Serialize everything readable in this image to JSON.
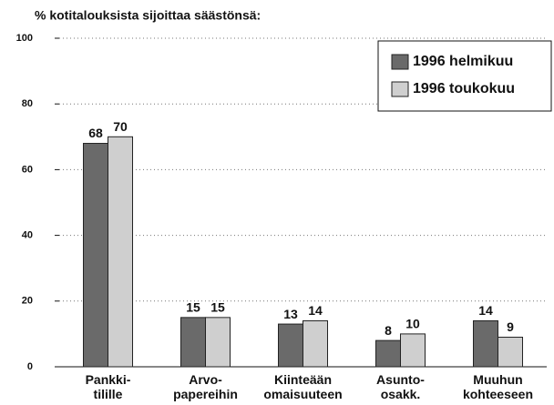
{
  "chart_data": {
    "type": "bar",
    "title": "% kotitalouksista sijoittaa säästönsä:",
    "categories": [
      "Pankki-\ntilille",
      "Arvo-\npapereihin",
      "Kiinteään\nomaisuuteen",
      "Asunto-\nosakk.",
      "Muuhun\nkohteeseen"
    ],
    "series": [
      {
        "name": "1996 helmikuu",
        "color": "#6a6a6a",
        "values": [
          68,
          15,
          13,
          8,
          14
        ]
      },
      {
        "name": "1996 toukokuu",
        "color": "#cfcfcf",
        "values": [
          70,
          15,
          14,
          10,
          9
        ]
      }
    ],
    "ylim": [
      0,
      100
    ],
    "yticks": [
      0,
      20,
      40,
      60,
      80,
      100
    ],
    "grid": true,
    "legend": "top-right"
  }
}
